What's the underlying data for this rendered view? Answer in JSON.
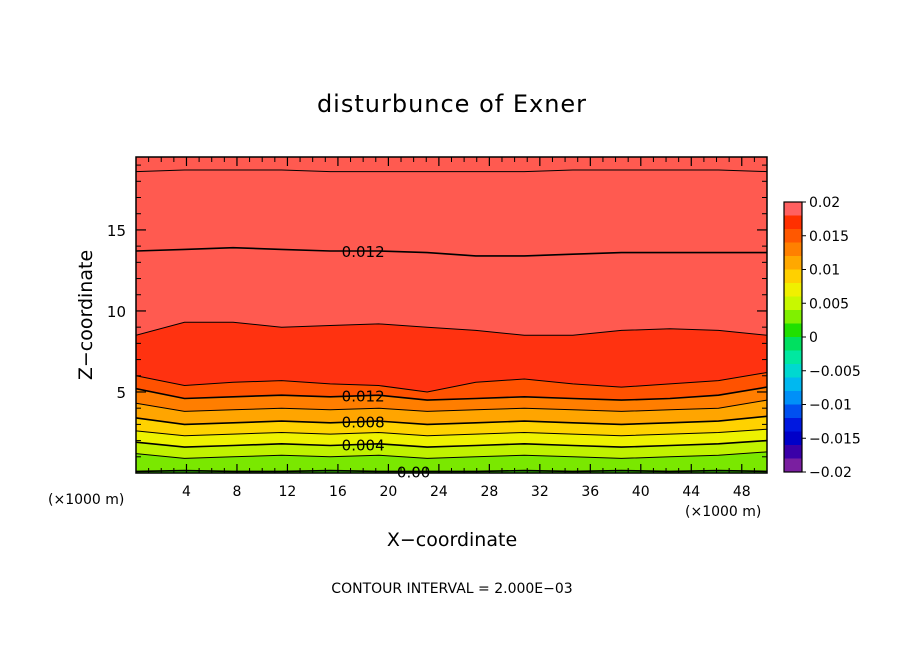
{
  "chart_data": {
    "type": "heatmap",
    "title": "disturbunce of Exner",
    "xlabel": "X−coordinate",
    "ylabel": "Z−coordinate",
    "x_unit": "(×1000 m)",
    "y_unit": "(×1000 m)",
    "xlim": [
      0,
      50
    ],
    "ylim": [
      0,
      19.5
    ],
    "x_ticks": [
      4,
      8,
      12,
      16,
      20,
      24,
      28,
      32,
      36,
      40,
      44,
      48
    ],
    "y_ticks": [
      5,
      10,
      15
    ],
    "contour_interval_text": "CONTOUR INTERVAL = 2.000E−03",
    "grid": false,
    "colorbar": {
      "position": "right",
      "min": -0.02,
      "max": 0.02,
      "labels": [
        "0.02",
        "0.015",
        "0.01",
        "0.005",
        "0",
        "−0.005",
        "−0.01",
        "−0.015",
        "−0.02"
      ],
      "levels": [
        -0.02,
        -0.018,
        -0.016,
        -0.014,
        -0.012,
        -0.01,
        -0.008,
        -0.006,
        -0.004,
        -0.002,
        0,
        0.002,
        0.004,
        0.006,
        0.008,
        0.01,
        0.012,
        0.014,
        0.016,
        0.018,
        0.02
      ],
      "colors": [
        "#7a1fa0",
        "#3a00a8",
        "#0000c8",
        "#0018e0",
        "#0050f0",
        "#0090f8",
        "#00b8f0",
        "#00d8d0",
        "#00e8a0",
        "#00e060",
        "#20e000",
        "#80f000",
        "#c8f800",
        "#f0f000",
        "#ffd000",
        "#ffa800",
        "#ff8000",
        "#ff5800",
        "#ff3000",
        "#ff6060"
      ]
    },
    "band_colors": [
      "#38dd00",
      "#7ae800",
      "#c0f200",
      "#eef200",
      "#ffd200",
      "#ffa500",
      "#ff7e00",
      "#ff5200",
      "#ff3210",
      "#ff5a50"
    ],
    "contours": [
      {
        "value": 0.0,
        "label": "0.00",
        "z": [
          0.1,
          0.15,
          0.1,
          0.1,
          0.15,
          0.1,
          0.1,
          0.1,
          0.15,
          0.1,
          0.15,
          0.1,
          0.15,
          0.1
        ]
      },
      {
        "value": 0.002,
        "label": "",
        "z": [
          1.2,
          0.9,
          1.0,
          1.1,
          1.0,
          1.1,
          0.9,
          1.0,
          1.1,
          1.0,
          0.9,
          1.0,
          1.1,
          1.3
        ]
      },
      {
        "value": 0.004,
        "label": "0.004",
        "z": [
          1.9,
          1.6,
          1.7,
          1.8,
          1.7,
          1.8,
          1.6,
          1.7,
          1.8,
          1.7,
          1.6,
          1.7,
          1.8,
          2.0
        ]
      },
      {
        "value": 0.006,
        "label": "",
        "z": [
          2.6,
          2.3,
          2.4,
          2.5,
          2.4,
          2.5,
          2.3,
          2.4,
          2.5,
          2.4,
          2.3,
          2.4,
          2.5,
          2.7
        ]
      },
      {
        "value": 0.008,
        "label": "0.008",
        "z": [
          3.4,
          3.0,
          3.1,
          3.2,
          3.1,
          3.2,
          3.0,
          3.1,
          3.2,
          3.1,
          3.0,
          3.1,
          3.2,
          3.5
        ]
      },
      {
        "value": 0.01,
        "label": "",
        "z": [
          4.3,
          3.8,
          3.9,
          4.0,
          3.9,
          4.0,
          3.8,
          3.9,
          4.0,
          3.9,
          3.8,
          3.9,
          4.0,
          4.5
        ]
      },
      {
        "value": 0.012,
        "label": "0.012",
        "z": [
          5.2,
          4.6,
          4.7,
          4.8,
          4.7,
          4.8,
          4.5,
          4.6,
          4.7,
          4.6,
          4.5,
          4.6,
          4.8,
          5.3
        ]
      },
      {
        "value": 0.014,
        "label": "",
        "z": [
          6.0,
          5.4,
          5.6,
          5.7,
          5.5,
          5.4,
          5.0,
          5.6,
          5.8,
          5.5,
          5.3,
          5.5,
          5.7,
          6.2
        ]
      },
      {
        "value": 0.014,
        "label": "",
        "z": [
          8.5,
          9.3,
          9.3,
          9.0,
          9.1,
          9.2,
          9.0,
          8.8,
          8.5,
          8.5,
          8.8,
          8.9,
          8.8,
          8.5
        ]
      },
      {
        "value": 0.012,
        "label": "0.012",
        "z": [
          13.7,
          13.8,
          13.9,
          13.8,
          13.7,
          13.7,
          13.6,
          13.4,
          13.4,
          13.5,
          13.6,
          13.6,
          13.6,
          13.6
        ]
      },
      {
        "value": 0.01,
        "label": "",
        "z": [
          18.6,
          18.7,
          18.7,
          18.7,
          18.6,
          18.6,
          18.6,
          18.6,
          18.6,
          18.7,
          18.7,
          18.7,
          18.7,
          18.6
        ]
      }
    ]
  }
}
